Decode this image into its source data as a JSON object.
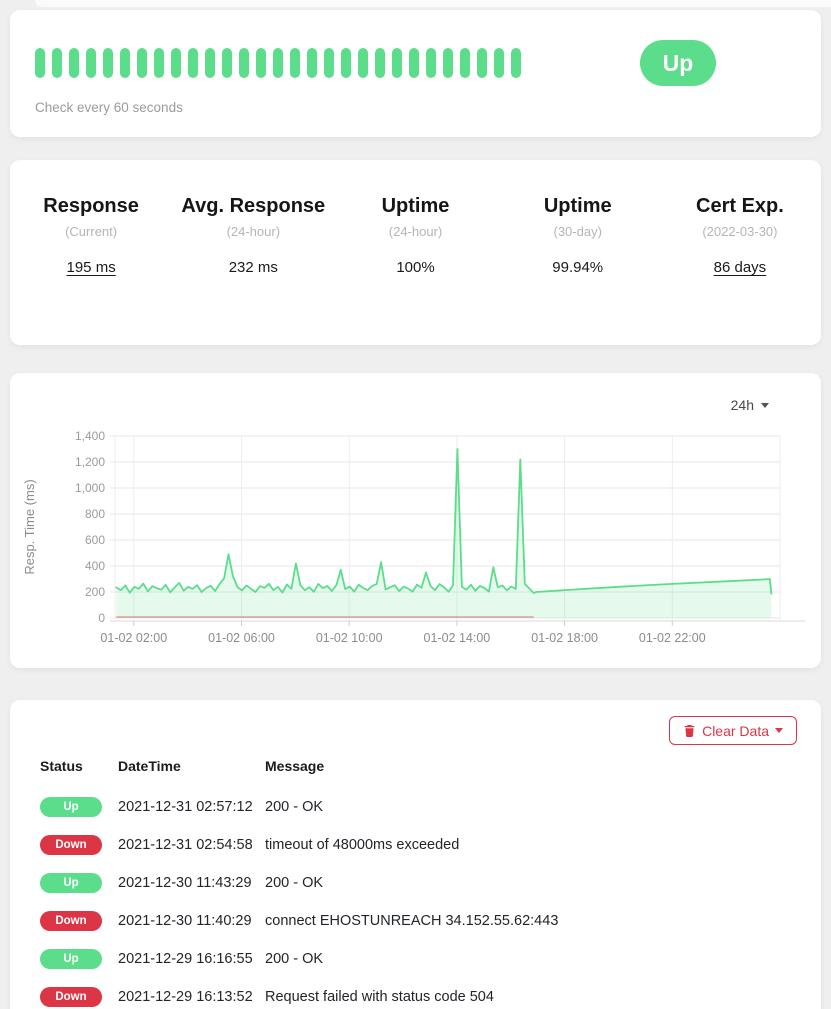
{
  "monitor": {
    "status_label": "Up",
    "check_interval_text": "Check every 60 seconds",
    "heartbeat_count": 29,
    "up_color": "#5cdd8b",
    "down_color": "#dc3545"
  },
  "stats": {
    "items": [
      {
        "title": "Response",
        "subtitle": "(Current)",
        "value": "195 ms"
      },
      {
        "title": "Avg. Response",
        "subtitle": "(24-hour)",
        "value": "232 ms"
      },
      {
        "title": "Uptime",
        "subtitle": "(24-hour)",
        "value": "100%"
      },
      {
        "title": "Uptime",
        "subtitle": "(30-day)",
        "value": "99.94%"
      },
      {
        "title": "Cert Exp.",
        "subtitle": "(2022-03-30)",
        "value": "86 days"
      }
    ]
  },
  "chart_data": {
    "type": "area",
    "title": "",
    "xlabel": "",
    "ylabel": "Resp. Time (ms)",
    "period_label": "24h",
    "ylim": [
      0,
      1400
    ],
    "y_ticks": [
      0,
      200,
      400,
      600,
      800,
      1000,
      1200,
      1400
    ],
    "y_tick_labels": [
      "0",
      "200",
      "400",
      "600",
      "800",
      "1,000",
      "1,200",
      "1,400"
    ],
    "x_ticks": [
      {
        "hour": 2,
        "label": "01-02 02:00"
      },
      {
        "hour": 6,
        "label": "01-02 06:00"
      },
      {
        "hour": 10,
        "label": "01-02 10:00"
      },
      {
        "hour": 14,
        "label": "01-02 14:00"
      },
      {
        "hour": 18,
        "label": "01-02 18:00"
      },
      {
        "hour": 22,
        "label": "01-02 22:00"
      }
    ],
    "xlim_hours": [
      1.3,
      26.0
    ],
    "grid": true,
    "legend": false,
    "line_color": "#5cdd8b",
    "fill_color": "rgba(92,221,139,0.16)",
    "down_line": {
      "from_hour": 1.35,
      "to_hour": 16.85,
      "color": "#dc3545"
    },
    "series_noisy": {
      "name": "Response time (ms)",
      "start_hour": 1.35,
      "step_hour": 0.1667,
      "values": [
        235,
        215,
        250,
        195,
        240,
        225,
        265,
        205,
        245,
        230,
        218,
        255,
        198,
        235,
        270,
        210,
        240,
        225,
        252,
        200,
        230,
        248,
        208,
        262,
        305,
        490,
        320,
        238,
        212,
        250,
        225,
        200,
        245,
        232,
        263,
        215,
        240,
        196,
        258,
        225,
        420,
        252,
        214,
        236,
        202,
        262,
        230,
        246,
        208,
        252,
        370,
        222,
        242,
        203,
        256,
        231,
        214,
        247,
        262,
        430,
        219,
        236,
        252,
        207,
        241,
        226,
        203,
        257,
        232,
        350,
        246,
        214,
        261,
        237,
        202,
        251,
        1300,
        241,
        218,
        256,
        209,
        247,
        231,
        203,
        390,
        236,
        251,
        213,
        242,
        224,
        1220,
        262,
        228,
        192
      ]
    },
    "series_tail": [
      [
        16.95,
        200
      ],
      [
        18,
        215
      ],
      [
        20,
        240
      ],
      [
        22,
        262
      ],
      [
        24,
        282
      ],
      [
        25.5,
        298
      ],
      [
        25.62,
        300
      ],
      [
        25.68,
        188
      ]
    ]
  },
  "events": {
    "clear_button_label": "Clear Data",
    "columns": [
      "Status",
      "DateTime",
      "Message"
    ],
    "rows": [
      {
        "status": "Up",
        "datetime": "2021-12-31 02:57:12",
        "message": "200 - OK"
      },
      {
        "status": "Down",
        "datetime": "2021-12-31 02:54:58",
        "message": "timeout of 48000ms exceeded"
      },
      {
        "status": "Up",
        "datetime": "2021-12-30 11:43:29",
        "message": "200 - OK"
      },
      {
        "status": "Down",
        "datetime": "2021-12-30 11:40:29",
        "message": "connect EHOSTUNREACH 34.152.55.62:443"
      },
      {
        "status": "Up",
        "datetime": "2021-12-29 16:16:55",
        "message": "200 - OK"
      },
      {
        "status": "Down",
        "datetime": "2021-12-29 16:13:52",
        "message": "Request failed with status code 504"
      }
    ]
  }
}
